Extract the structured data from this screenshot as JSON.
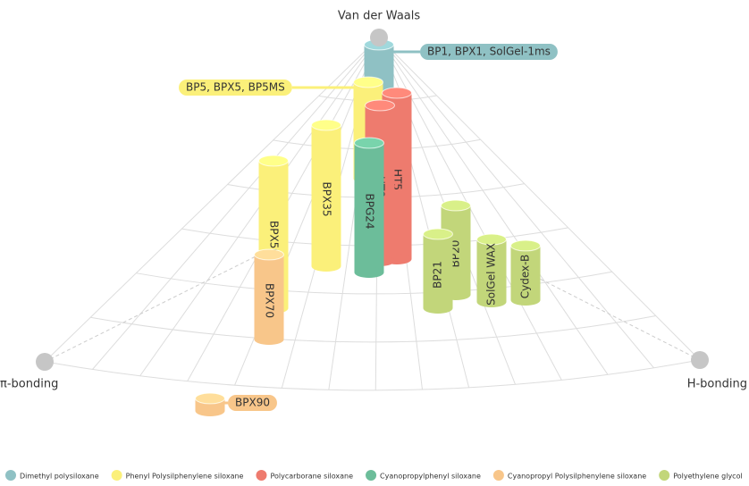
{
  "axes": {
    "top": "Van der Waals",
    "left": "π-bonding",
    "right": "H-bonding"
  },
  "legend": [
    {
      "label": "Dimethyl polysiloxane",
      "color": "#8fc1c4"
    },
    {
      "label": "Phenyl Polysilphenylene siloxane",
      "color": "#fbf07a"
    },
    {
      "label": "Polycarborane siloxane",
      "color": "#ee7b6e"
    },
    {
      "label": "Cyanopropylphenyl siloxane",
      "color": "#6cbd9a"
    },
    {
      "label": "Cyanopropyl Polysilphenylene siloxane",
      "color": "#f8c68a"
    },
    {
      "label": "Polyethylene glycol",
      "color": "#c2d67a"
    }
  ],
  "columns": [
    {
      "label": "BP1, BPX1, SolGel-1ms",
      "phase": 0
    },
    {
      "label": "BP5, BPX5, BP5MS",
      "phase": 1
    },
    {
      "label": "HT5",
      "phase": 2
    },
    {
      "label": "HT8",
      "phase": 2
    },
    {
      "label": "BPX35",
      "phase": 1
    },
    {
      "label": "BPX50",
      "phase": 1
    },
    {
      "label": "BPG24",
      "phase": 3
    },
    {
      "label": "BP20",
      "phase": 5
    },
    {
      "label": "Cydex-B",
      "phase": 5
    },
    {
      "label": "SolGel WAX",
      "phase": 5
    },
    {
      "label": "BP21",
      "phase": 5
    },
    {
      "label": "BPX70",
      "phase": 4
    },
    {
      "label": "BPX90",
      "phase": 4
    }
  ]
}
